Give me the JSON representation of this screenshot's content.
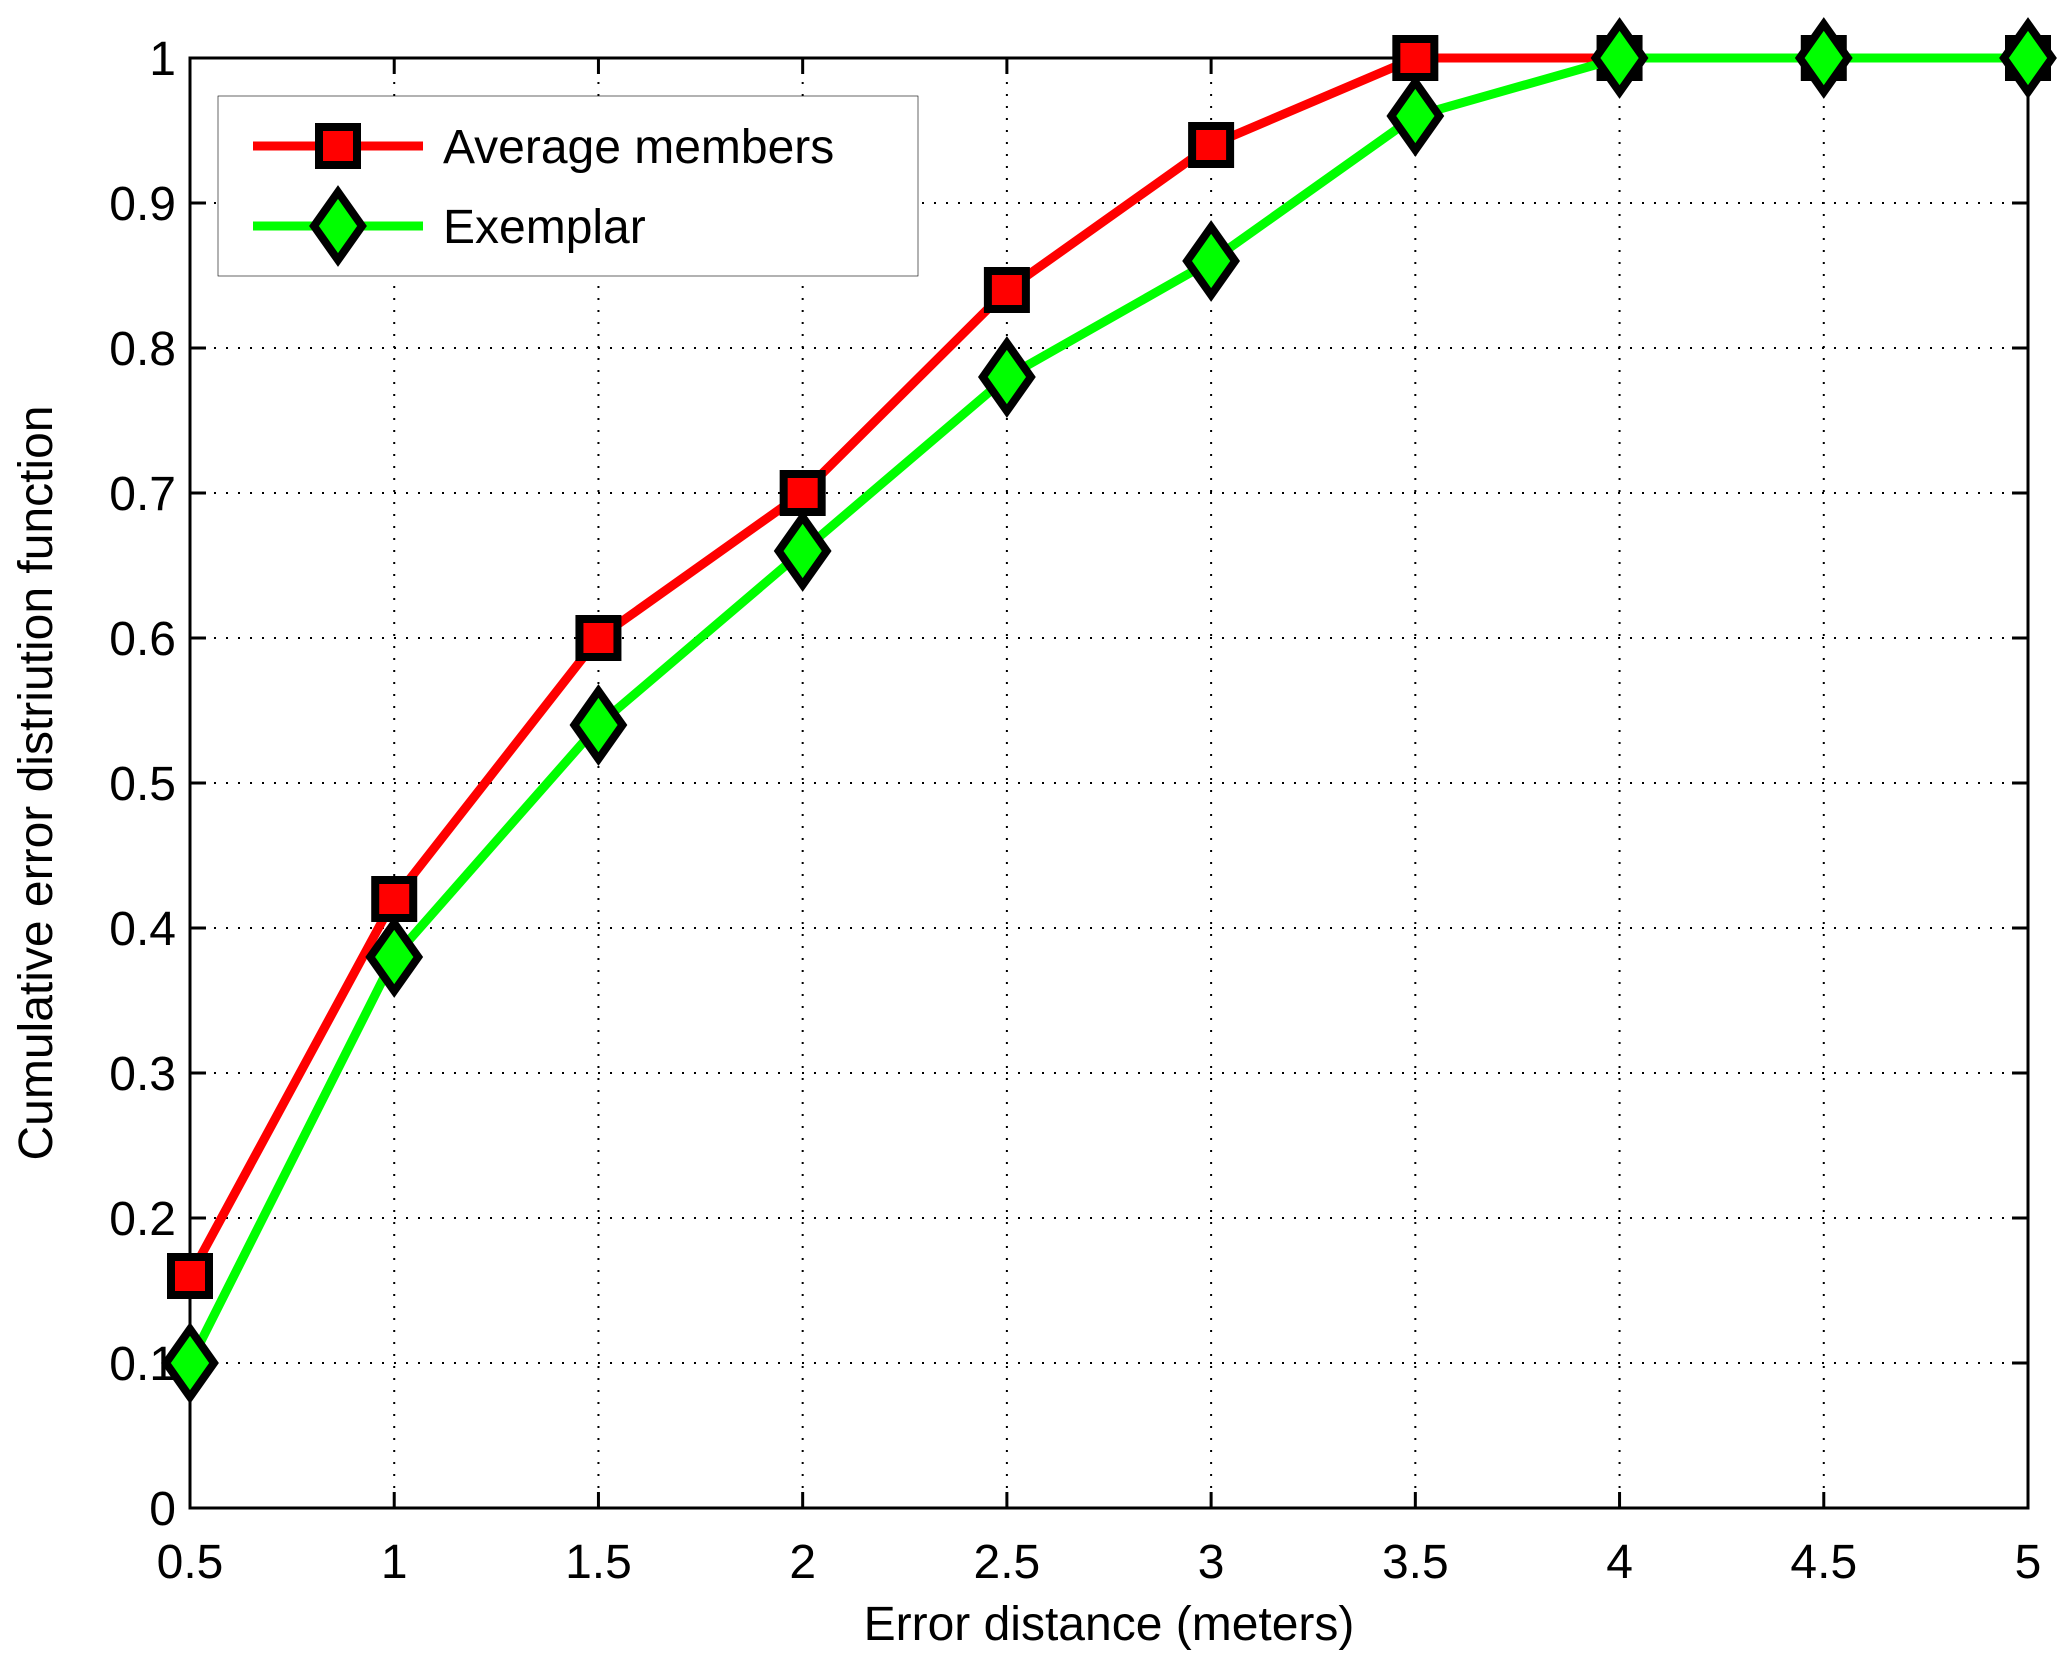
{
  "chart_data": {
    "type": "line",
    "title": "",
    "xlabel": "Error distance (meters)",
    "ylabel": "Cumulative error distriution function",
    "x": [
      0.5,
      1,
      1.5,
      2,
      2.5,
      3,
      3.5,
      4,
      4.5,
      5
    ],
    "xlim": [
      0.5,
      5
    ],
    "ylim": [
      0,
      1
    ],
    "xticks": [
      "0.5",
      "1",
      "1.5",
      "2",
      "2.5",
      "3",
      "3.5",
      "4",
      "4.5",
      "5"
    ],
    "yticks": [
      "0",
      "0.1",
      "0.2",
      "0.3",
      "0.4",
      "0.5",
      "0.6",
      "0.7",
      "0.8",
      "0.9",
      "1"
    ],
    "grid": true,
    "legend_position": "top-left",
    "series": [
      {
        "name": "Average members",
        "color": "#ff0000",
        "marker": "square",
        "values": [
          0.16,
          0.42,
          0.6,
          0.7,
          0.84,
          0.94,
          1.0,
          1.0,
          1.0,
          1.0
        ]
      },
      {
        "name": "Exemplar",
        "color": "#00ff00",
        "marker": "diamond",
        "values": [
          0.1,
          0.38,
          0.54,
          0.66,
          0.78,
          0.86,
          0.96,
          1.0,
          1.0,
          1.0
        ]
      }
    ]
  }
}
